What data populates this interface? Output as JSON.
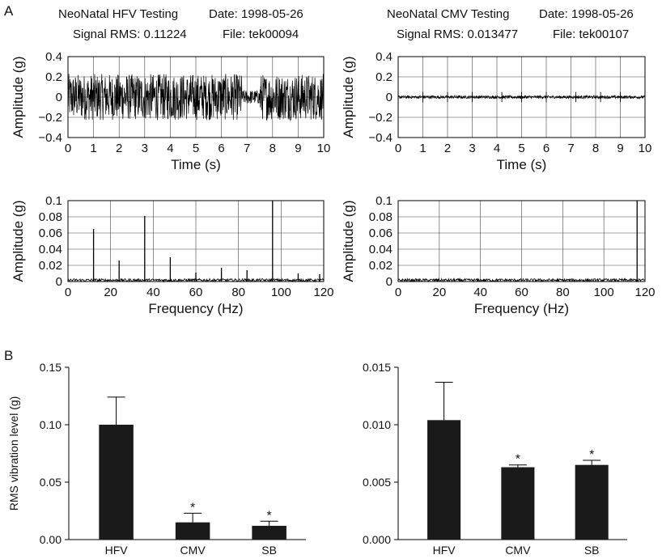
{
  "panel_labels": {
    "a": "A",
    "b": "B"
  },
  "headers": [
    {
      "title": "NeoNatal HFV Testing",
      "date": "Date: 1998-05-26",
      "rms": "Signal RMS: 0.11224",
      "file": "File: tek00094"
    },
    {
      "title": "NeoNatal CMV Testing",
      "date": "Date: 1998-05-26",
      "rms": "Signal RMS: 0.013477",
      "file": "File: tek00107"
    }
  ],
  "chart_data": [
    {
      "id": "hfv-time",
      "type": "line",
      "xlabel": "Time (s)",
      "ylabel": "Amplitude (g)",
      "xlim": [
        0,
        10
      ],
      "ylim": [
        -0.4,
        0.4
      ],
      "xticks": [
        "0",
        "1",
        "2",
        "3",
        "4",
        "5",
        "6",
        "7",
        "8",
        "9",
        "10"
      ],
      "yticks": [
        "0.4",
        "0.2",
        "0",
        "−0.2",
        "−0.4"
      ],
      "grid": true,
      "signal": {
        "segments": [
          {
            "x": [
              0,
              6.8
            ],
            "amplitude": 0.23
          },
          {
            "x": [
              6.8,
              7.5
            ],
            "amplitude": 0.07
          },
          {
            "x": [
              7.5,
              10
            ],
            "amplitude": 0.23
          }
        ]
      }
    },
    {
      "id": "cmv-time",
      "type": "line",
      "xlabel": "Time (s)",
      "ylabel": "Amplitude (g)",
      "xlim": [
        0,
        10
      ],
      "ylim": [
        -0.4,
        0.4
      ],
      "xticks": [
        "0",
        "1",
        "2",
        "3",
        "4",
        "5",
        "6",
        "7",
        "8",
        "9",
        "10"
      ],
      "yticks": [
        "0.4",
        "0.2",
        "0",
        "−0.2",
        "−0.4"
      ],
      "grid": true,
      "signal": {
        "segments": [
          {
            "x": [
              0,
              10
            ],
            "amplitude": 0.015
          }
        ],
        "spikes": [
          1,
          2,
          3,
          4.2,
          5,
          6,
          7.2,
          8.2,
          9
        ]
      }
    },
    {
      "id": "hfv-freq",
      "type": "line",
      "xlabel": "Frequency (Hz)",
      "ylabel": "Amplitude (g)",
      "xlim": [
        0,
        125
      ],
      "ylim": [
        0,
        0.1
      ],
      "xticks": [
        "0",
        "20",
        "40",
        "60",
        "80",
        "100",
        "120"
      ],
      "yticks": [
        "0.1",
        "0.08",
        "0.06",
        "0.04",
        "0.02",
        "0"
      ],
      "grid": true,
      "peaks": [
        {
          "x": 12.5,
          "y": 0.065
        },
        {
          "x": 25,
          "y": 0.026
        },
        {
          "x": 37.5,
          "y": 0.081
        },
        {
          "x": 50,
          "y": 0.03
        },
        {
          "x": 62.5,
          "y": 0.011
        },
        {
          "x": 75,
          "y": 0.017
        },
        {
          "x": 87.5,
          "y": 0.014
        },
        {
          "x": 100,
          "y": 0.1
        },
        {
          "x": 112.5,
          "y": 0.01
        },
        {
          "x": 123,
          "y": 0.009
        }
      ]
    },
    {
      "id": "cmv-freq",
      "type": "line",
      "xlabel": "Frequency (Hz)",
      "ylabel": "Amplitude (g)",
      "xlim": [
        0,
        125
      ],
      "ylim": [
        0,
        0.1
      ],
      "xticks": [
        "0",
        "20",
        "40",
        "60",
        "80",
        "100",
        "120"
      ],
      "yticks": [
        "0.1",
        "0.08",
        "0.06",
        "0.04",
        "0.02",
        "0"
      ],
      "grid": true,
      "peaks": [
        {
          "x": 20,
          "y": 0.003
        },
        {
          "x": 40,
          "y": 0.002
        },
        {
          "x": 60,
          "y": 0.001
        },
        {
          "x": 121,
          "y": 0.1
        }
      ]
    },
    {
      "id": "rms-bar-left",
      "type": "bar",
      "ylabel": "RMS vibration level (g)",
      "categories": [
        "HFV",
        "CMV",
        "SB"
      ],
      "values": [
        0.1,
        0.015,
        0.012
      ],
      "errors": [
        0.024,
        0.008,
        0.004
      ],
      "significant": [
        "",
        "*",
        "*"
      ],
      "ylim": [
        0,
        0.15
      ],
      "yticks": [
        "0.00",
        "0.05",
        "0.10",
        "0.15"
      ]
    },
    {
      "id": "rms-bar-right",
      "type": "bar",
      "ylabel": "",
      "categories": [
        "HFV",
        "CMV",
        "SB"
      ],
      "values": [
        0.0104,
        0.0063,
        0.0065
      ],
      "errors": [
        0.0033,
        0.0002,
        0.0004
      ],
      "significant": [
        "",
        "*",
        "*"
      ],
      "ylim": [
        0,
        0.015
      ],
      "yticks": [
        "0.000",
        "0.005",
        "0.010",
        "0.015"
      ]
    }
  ]
}
